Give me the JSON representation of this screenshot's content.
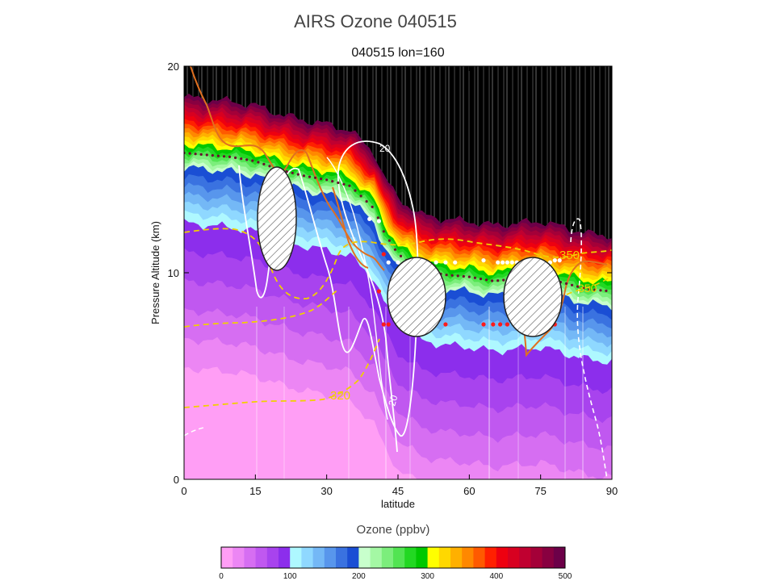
{
  "chart_data": {
    "type": "contour",
    "title": "AIRS Ozone 040515",
    "subtitle": "040515 lon=160",
    "xlabel": "latitude",
    "ylabel": "Pressure Altitude (km)",
    "xlim": [
      0,
      90
    ],
    "ylim": [
      0,
      20
    ],
    "x_ticks": [
      "0",
      "15",
      "30",
      "45",
      "60",
      "75",
      "90"
    ],
    "y_ticks": [
      "0",
      "10",
      "20"
    ],
    "x_tick_values": [
      0,
      15,
      30,
      45,
      60,
      75,
      90
    ],
    "y_tick_values": [
      0,
      10,
      20
    ],
    "colorbar": {
      "title": "Ozone (ppbv)",
      "ticks": [
        "0",
        "100",
        "200",
        "300",
        "400",
        "500"
      ],
      "tick_values": [
        0,
        100,
        200,
        300,
        400,
        500
      ],
      "range": [
        0,
        500
      ],
      "colors": [
        "#ff9ef5",
        "#ec86f4",
        "#d66ef2",
        "#c058f0",
        "#a843ee",
        "#8c2eec",
        "#aef8ff",
        "#8fd8ff",
        "#74b8f6",
        "#5896ec",
        "#3a72e0",
        "#1a4ed4",
        "#c8ffcc",
        "#a4f8a4",
        "#7cee7c",
        "#52e452",
        "#22d822",
        "#00c800",
        "#ffff00",
        "#ffd800",
        "#ffb000",
        "#ff8800",
        "#ff5a00",
        "#ff2000",
        "#ee0010",
        "#d80020",
        "#c00030",
        "#a40038",
        "#880040",
        "#6c0048"
      ]
    },
    "tropopause_km": [
      [
        0,
        15.9
      ],
      [
        5,
        15.8
      ],
      [
        10,
        15.7
      ],
      [
        15,
        15.5
      ],
      [
        20,
        15.1
      ],
      [
        25,
        14.8
      ],
      [
        30,
        14.6
      ],
      [
        35,
        14.3
      ],
      [
        40,
        13.2
      ],
      [
        42,
        12.1
      ],
      [
        45,
        11.0
      ],
      [
        50,
        10.2
      ],
      [
        55,
        10.0
      ],
      [
        60,
        9.9
      ],
      [
        65,
        9.7
      ],
      [
        70,
        9.8
      ],
      [
        75,
        9.9
      ],
      [
        80,
        9.6
      ],
      [
        85,
        9.3
      ],
      [
        90,
        9.2
      ]
    ],
    "contours": [
      {
        "label": "20",
        "color": "white"
      },
      {
        "label": "320",
        "color": "#f0d000"
      },
      {
        "label": "350",
        "color": "#f0d000"
      }
    ]
  }
}
